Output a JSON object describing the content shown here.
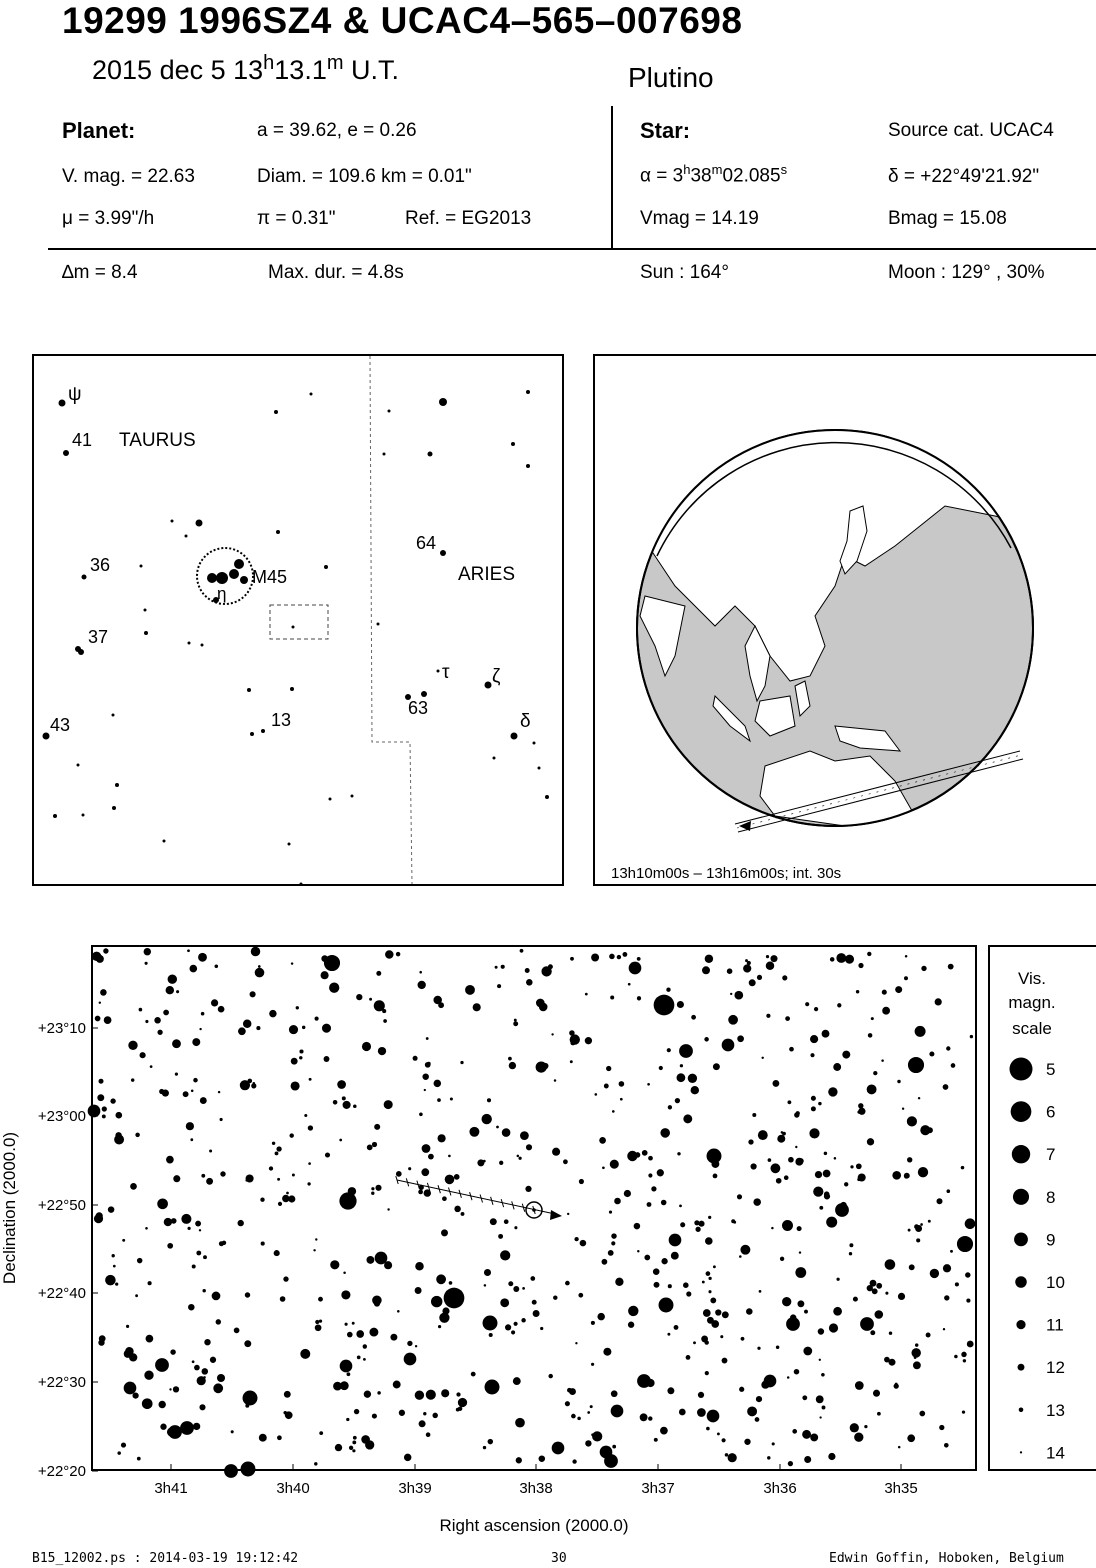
{
  "header": {
    "title": "19299 1996SZ4  &  UCAC4–565–007698",
    "date_prefix": "2015 dec  5  13",
    "date_h": "h",
    "date_min": "13.1",
    "date_m": "m",
    "date_suffix": " U.T.",
    "object_type": "Plutino"
  },
  "planet": {
    "label": "Planet:",
    "orbit": "a = 39.62, e = 0.26",
    "vmag": "V. mag. = 22.63",
    "diam": "Diam. = 109.6 km = 0.01\"",
    "mu": "μ =  3.99\"/h",
    "pi": "π =  0.31\"",
    "ref": "Ref. = EG2013",
    "dm": "∆m = 8.4",
    "maxdur": "Max. dur. = 4.8s"
  },
  "star": {
    "label": "Star:",
    "source": "Source cat.  UCAC4",
    "alpha_prefix": "α =  3",
    "alpha_h": "h",
    "alpha_38": "38",
    "alpha_m": "m",
    "alpha_sec": "02.085",
    "alpha_s": "s",
    "delta": "δ = +22°49'21.92\"",
    "vmag": "Vmag = 14.19",
    "bmag": "Bmag = 15.08",
    "sun": "Sun : 164°",
    "moon": "Moon : 129° , 30%"
  },
  "finder": {
    "constellations": [
      "TAURUS",
      "ARIES"
    ],
    "labels": [
      "ψ",
      "41",
      "36",
      "37",
      "43",
      "13",
      "M45",
      "η",
      "64",
      "τ",
      "ζ",
      "63",
      "δ"
    ]
  },
  "globe": {
    "caption": "13h10m00s – 13h16m00s; int. 30s"
  },
  "chart_data": {
    "type": "scatter",
    "xlabel": "Right ascension (2000.0)",
    "ylabel": "Declination (2000.0)",
    "x_ticks": [
      "3h41",
      "3h40",
      "3h39",
      "3h38",
      "3h37",
      "3h36",
      "3h35"
    ],
    "y_ticks": [
      "+23°10",
      "+23°00",
      "+22°50",
      "+22°40",
      "+22°30",
      "+22°20"
    ],
    "scale_title": [
      "Vis.",
      "magn.",
      "scale"
    ],
    "scale_mags": [
      "5",
      "6",
      "7",
      "8",
      "9",
      "10",
      "11",
      "12",
      "13",
      "14"
    ],
    "target": {
      "ra": "3h38m02.085s",
      "dec": "+22°49'21.92\""
    }
  },
  "footer": {
    "file": "B15_12002.ps : 2014-03-19 19:12:42",
    "page": "30",
    "author": "Edwin Goffin, Hoboken, Belgium"
  }
}
